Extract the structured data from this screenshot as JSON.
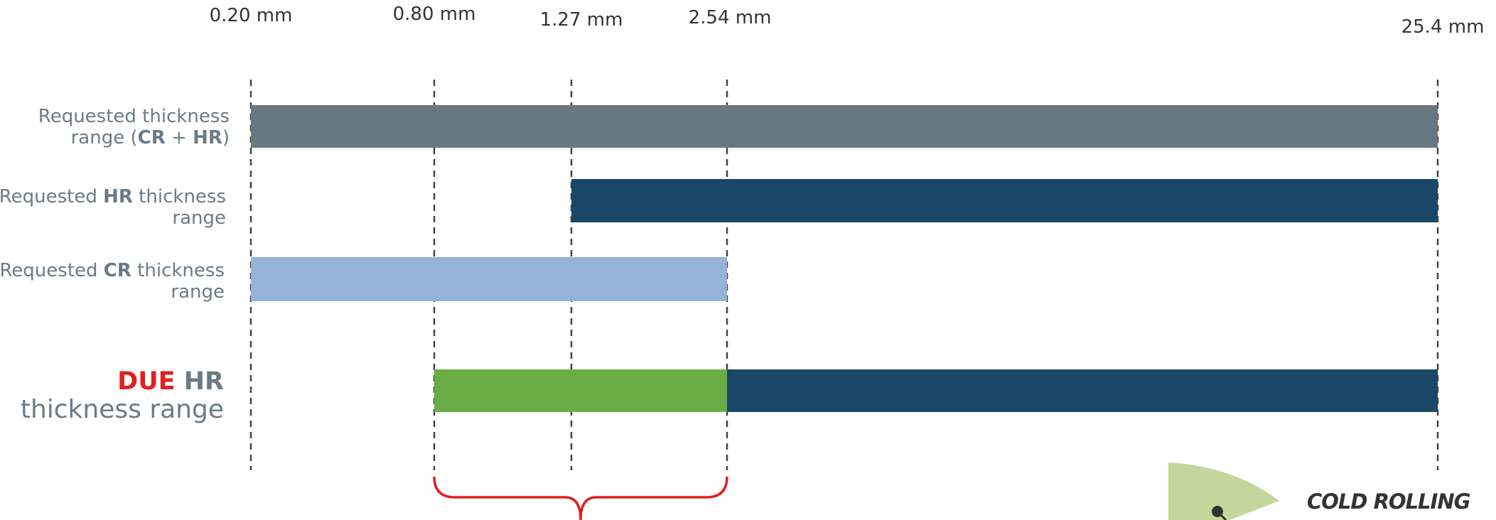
{
  "ticks": [
    "0.20 mm",
    "0.80 mm",
    "1.27 mm",
    "2.54 mm",
    "25.4 mm"
  ],
  "rows": [
    {
      "line1": "Requested thickness",
      "line2": [
        "range (",
        "CR",
        " + ",
        "HR",
        ")"
      ]
    },
    {
      "line1": [
        "Requested ",
        "HR",
        " thickness"
      ],
      "line2": "range"
    },
    {
      "line1": [
        "Requested ",
        "CR",
        " thickness"
      ],
      "line2": "range"
    },
    {
      "line1": [
        "DUE",
        " HR"
      ],
      "line2": "thickness range"
    }
  ],
  "callout": "COLD ROLLING"
}
